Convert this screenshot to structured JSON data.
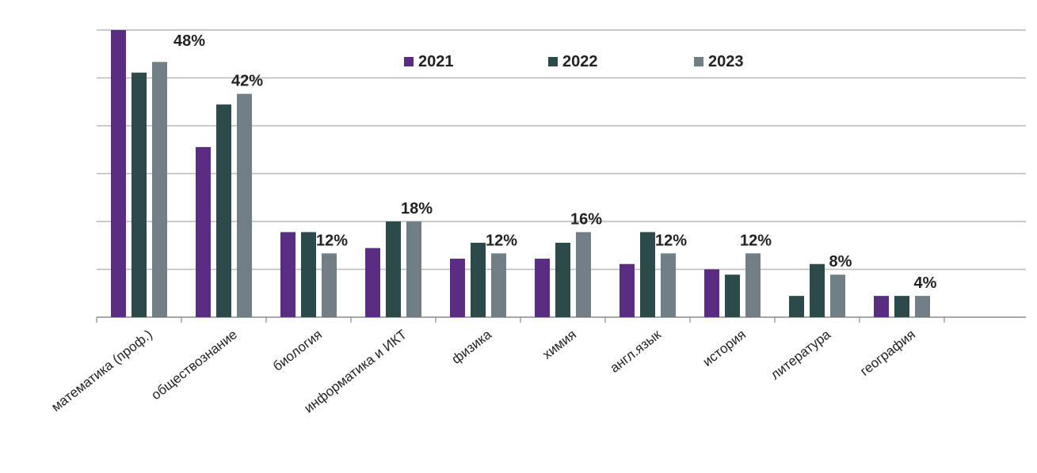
{
  "chart_data": {
    "type": "bar",
    "title": "",
    "xlabel": "",
    "ylabel": "",
    "ylim": [
      0,
      54
    ],
    "grid": true,
    "legend_position": "top-center",
    "categories": [
      "математика (проф.)",
      "обществознание",
      "биология",
      "информатика и ИКТ",
      "физика",
      "химия",
      "англ.язык",
      "история",
      "литература",
      "география"
    ],
    "series": [
      {
        "name": "2021",
        "color": "#5a2d82",
        "values": [
          54,
          32,
          16,
          13,
          11,
          11,
          10,
          9,
          0,
          4
        ]
      },
      {
        "name": "2022",
        "color": "#2c4a4a",
        "values": [
          46,
          40,
          16,
          18,
          14,
          14,
          16,
          8,
          10,
          4
        ]
      },
      {
        "name": "2023",
        "color": "#6f7f85",
        "values": [
          48,
          42,
          12,
          18,
          12,
          16,
          12,
          12,
          8,
          4
        ]
      }
    ],
    "extra_bar": {
      "category_index": 8,
      "value": 4,
      "color": "#2c4a4a"
    },
    "data_labels": [
      "48%",
      "42%",
      "12%",
      "18%",
      "12%",
      "16%",
      "12%",
      "12%",
      "8%",
      "4%"
    ]
  }
}
